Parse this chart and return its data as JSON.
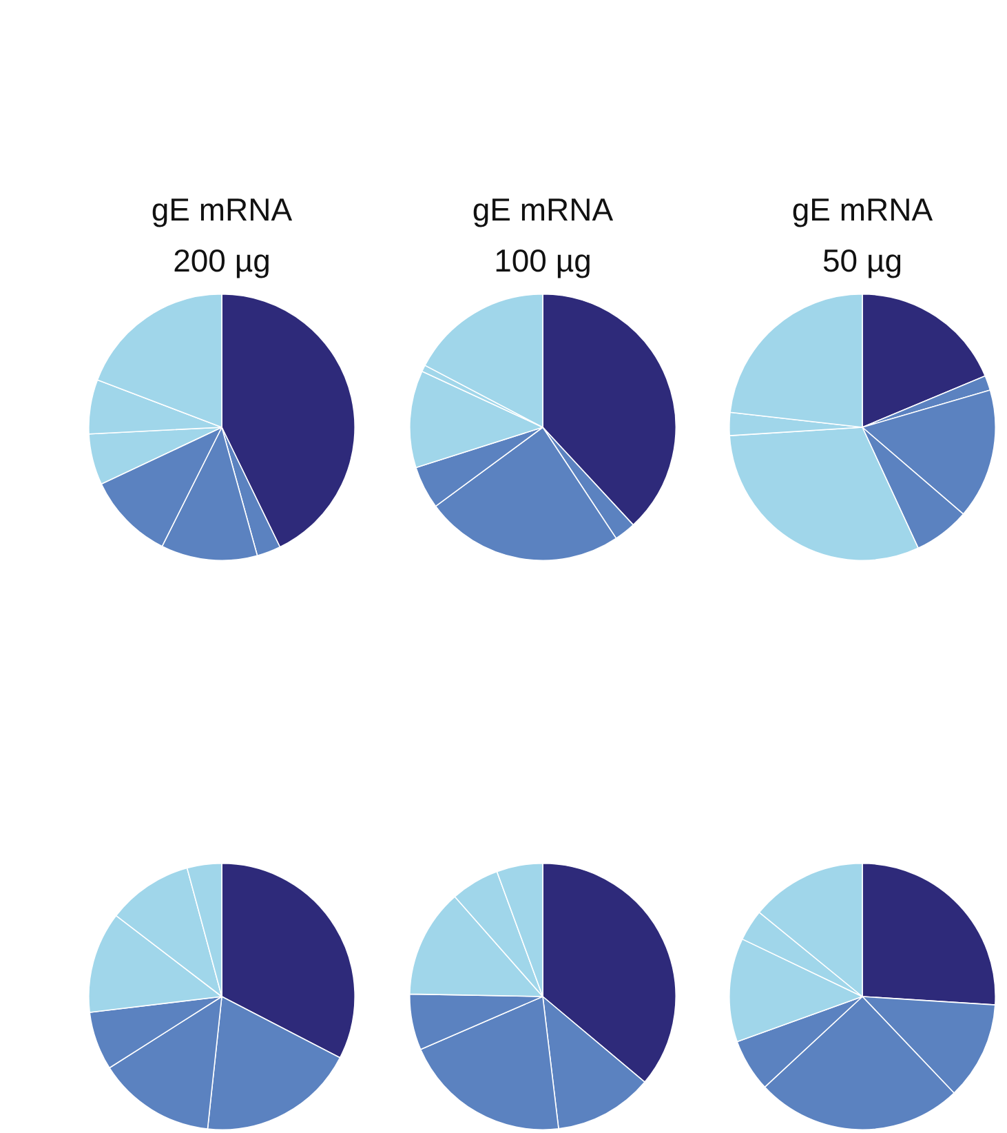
{
  "chart_data": [
    {
      "type": "pie",
      "title": "gE mRNA 200 µg",
      "categories": [
        null,
        null,
        null,
        null,
        null,
        null,
        null
      ],
      "values": [
        42.8,
        2.9,
        11.7,
        10.6,
        6.2,
        6.6,
        19.2
      ],
      "colors": [
        "#2e2a7a",
        "#5b82c0",
        "#5b82c0",
        "#5b82c0",
        "#a0d6ea",
        "#a0d6ea",
        "#a0d6ea"
      ]
    },
    {
      "type": "pie",
      "title": "gE mRNA 100 µg",
      "categories": [
        null,
        null,
        null,
        null,
        null,
        null,
        null
      ],
      "values": [
        38.1,
        2.6,
        24.2,
        5.2,
        11.8,
        0.8,
        17.3
      ],
      "colors": [
        "#2e2a7a",
        "#5b82c0",
        "#5b82c0",
        "#5b82c0",
        "#a0d6ea",
        "#a0d6ea",
        "#a0d6ea"
      ]
    },
    {
      "type": "pie",
      "title": "gE mRNA 50 µg",
      "categories": [
        null,
        null,
        null,
        null,
        null,
        null,
        null
      ],
      "values": [
        18.7,
        1.8,
        15.8,
        6.8,
        30.9,
        2.8,
        23.2
      ],
      "colors": [
        "#2e2a7a",
        "#5b82c0",
        "#5b82c0",
        "#5b82c0",
        "#a0d6ea",
        "#a0d6ea",
        "#a0d6ea"
      ]
    },
    {
      "type": "pie",
      "categories": [
        null,
        null,
        null,
        null,
        null,
        null,
        null
      ],
      "values": [
        32.6,
        19.1,
        14.3,
        7.1,
        12.3,
        10.4,
        4.2
      ],
      "colors": [
        "#2e2a7a",
        "#5b82c0",
        "#5b82c0",
        "#5b82c0",
        "#a0d6ea",
        "#a0d6ea",
        "#a0d6ea"
      ]
    },
    {
      "type": "pie",
      "categories": [
        null,
        null,
        null,
        null,
        null,
        null,
        null
      ],
      "values": [
        36.1,
        12.0,
        20.4,
        6.8,
        13.2,
        5.9,
        5.6
      ],
      "colors": [
        "#2e2a7a",
        "#5b82c0",
        "#5b82c0",
        "#5b82c0",
        "#a0d6ea",
        "#a0d6ea",
        "#a0d6ea"
      ]
    },
    {
      "type": "pie",
      "categories": [
        null,
        null,
        null,
        null,
        null,
        null,
        null
      ],
      "values": [
        26.0,
        11.9,
        25.2,
        6.4,
        12.6,
        3.8,
        14.1
      ],
      "colors": [
        "#2e2a7a",
        "#5b82c0",
        "#5b82c0",
        "#5b82c0",
        "#a0d6ea",
        "#a0d6ea",
        "#a0d6ea"
      ]
    }
  ]
}
